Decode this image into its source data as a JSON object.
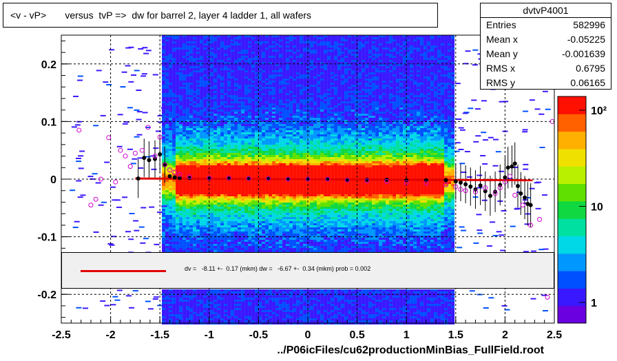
{
  "chart_title": "<v - vP>       versus  tvP =>  dw for barrel 2, layer 4 ladder 1, all wafers",
  "stats": {
    "name": "dvtvP4001",
    "rows": [
      {
        "label": "Entries",
        "value": "582996"
      },
      {
        "label": "Mean x",
        "value": "-0.05225"
      },
      {
        "label": "Mean y",
        "value": "-0.001639"
      },
      {
        "label": "RMS x",
        "value": "0.6795"
      },
      {
        "label": "RMS y",
        "value": "0.06165"
      }
    ]
  },
  "legend": {
    "line_color": "#e00000",
    "text": "dv =   -8.11 +-  0.17 (mkm) dw =   -6.67 +-  0.34 (mkm) prob = 0.002"
  },
  "footer": "../P06icFiles/cu62productionMinBias_FullField.root",
  "chart_data": {
    "type": "heatmap",
    "xlim": [
      -2.5,
      2.5
    ],
    "ylim": [
      -0.25,
      0.25
    ],
    "x_ticks": [
      -2.5,
      -2,
      -1.5,
      -1,
      -0.5,
      0,
      0.5,
      1,
      1.5,
      2,
      2.5
    ],
    "x_tick_labels": [
      "-2.5",
      "-2",
      "-1.5",
      "-1",
      "-0.5",
      "0",
      "0.5",
      "1",
      "1.5",
      "2",
      "2.5"
    ],
    "y_ticks": [
      -0.2,
      -0.1,
      0,
      0.1,
      0.2
    ],
    "y_tick_labels": [
      "-0.2",
      "-0.1",
      "0",
      "0.1",
      "0.2"
    ],
    "grid": true,
    "colorbar": {
      "log_scale": true,
      "tick_values": [
        1,
        10,
        100
      ],
      "tick_labels": [
        "1",
        "10",
        "10²"
      ]
    },
    "fit_line": {
      "color": "#e00000",
      "x": [
        -1.75,
        2.28
      ],
      "y": [
        0.001,
        -0.002
      ]
    },
    "mean_points": {
      "marker": "filled-circle",
      "color": "#000000",
      "x": [
        -1.72,
        -1.66,
        -1.61,
        -1.55,
        -1.5,
        -1.45,
        -1.4,
        -1.35,
        -1.3,
        -1.2,
        -1.0,
        -0.8,
        -0.6,
        -0.4,
        -0.2,
        0.0,
        0.2,
        0.4,
        0.6,
        0.8,
        1.0,
        1.2,
        1.4,
        1.5,
        1.55,
        1.6,
        1.65,
        1.7,
        1.75,
        1.8,
        1.85,
        1.9,
        1.95,
        2.0,
        2.03,
        2.07,
        2.1,
        2.13,
        2.16,
        2.2,
        2.23,
        2.26
      ],
      "y": [
        0.001,
        0.037,
        0.033,
        0.035,
        0.043,
        0.025,
        0.005,
        0.003,
        0.002,
        0.002,
        0.001,
        0.001,
        0.001,
        0.001,
        0.0,
        0.0,
        0.0,
        -0.001,
        -0.001,
        -0.001,
        -0.002,
        -0.002,
        -0.002,
        -0.004,
        -0.006,
        -0.009,
        -0.013,
        -0.018,
        -0.011,
        -0.021,
        -0.029,
        -0.022,
        -0.01,
        0.003,
        0.02,
        0.022,
        0.027,
        -0.012,
        -0.025,
        -0.032,
        -0.043,
        -0.045
      ]
    },
    "profile_points": {
      "marker": "open-circle",
      "color": "#d000d0",
      "x": [
        -2.32,
        -2.2,
        -2.15,
        -2.1,
        -2.02,
        -1.95,
        -1.9,
        -1.85,
        -1.8,
        -1.75,
        -1.68,
        -1.62,
        -1.55,
        -1.5,
        -1.45,
        -1.4,
        -1.35,
        -1.3,
        -1.2,
        -1.0,
        -0.8,
        -0.6,
        -0.4,
        -0.2,
        0.0,
        0.2,
        0.4,
        0.6,
        0.8,
        1.0,
        1.2,
        1.4,
        1.5,
        1.55,
        1.6,
        1.7,
        1.8,
        1.9,
        1.95,
        2.0,
        2.05,
        2.1,
        2.18,
        2.26,
        2.35,
        2.43,
        2.48
      ],
      "y": [
        0.085,
        -0.045,
        -0.035,
        0.0,
        0.072,
        -0.005,
        0.05,
        0.04,
        0.022,
        0.045,
        0.05,
        0.09,
        0.04,
        0.073,
        0.025,
        0.016,
        0.012,
        0.008,
        0.004,
        0.002,
        0.002,
        0.001,
        0.001,
        0.0,
        0.0,
        0.0,
        -0.002,
        -0.003,
        -0.004,
        -0.006,
        -0.007,
        -0.01,
        -0.013,
        -0.018,
        -0.02,
        -0.022,
        -0.015,
        -0.025,
        -0.015,
        -0.005,
        0.005,
        -0.028,
        -0.045,
        -0.08,
        -0.07,
        -0.205,
        0.1
      ]
    }
  }
}
